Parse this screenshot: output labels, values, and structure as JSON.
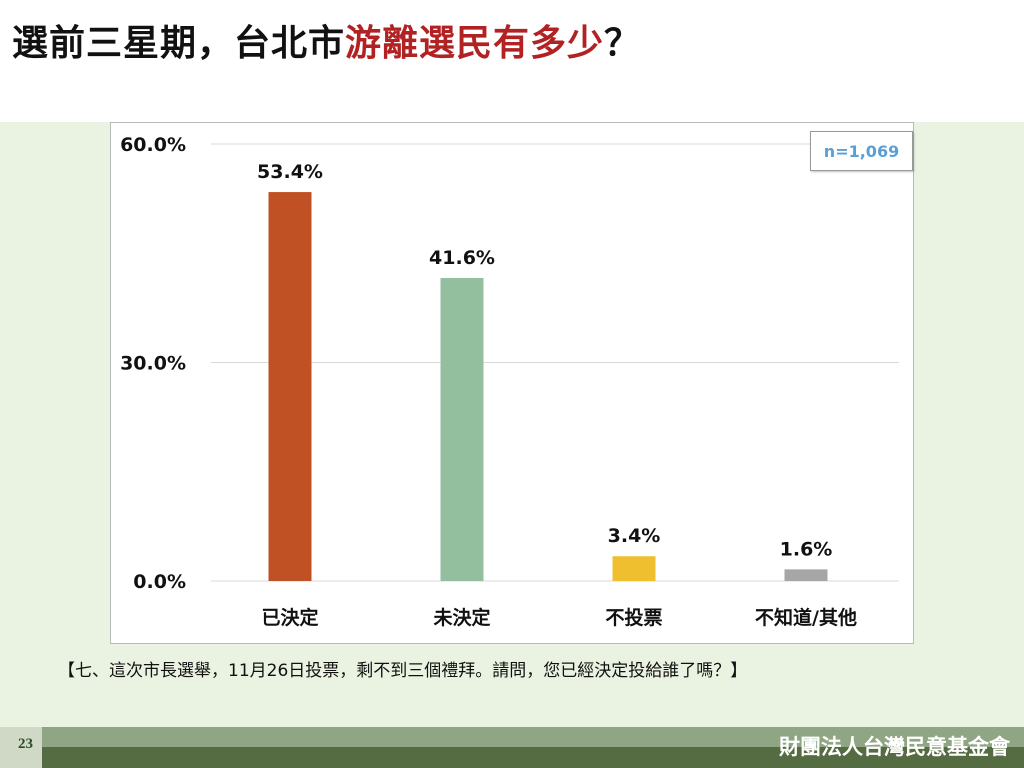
{
  "title": {
    "part1": "選前三星期，台北市",
    "part2": "游離選民有多少",
    "part3": "？"
  },
  "sample_label": "n=1,069",
  "question": "【七、這次市長選舉，11月26日投票，剩不到三個禮拜。請問，您已經決定投給誰了嗎？】",
  "page_number": "23",
  "organization": "財團法人台灣民意基金會",
  "chart_data": {
    "type": "bar",
    "categories": [
      "已決定",
      "未決定",
      "不投票",
      "不知道/其他"
    ],
    "values": [
      53.4,
      41.6,
      3.4,
      1.6
    ],
    "value_labels": [
      "53.4%",
      "41.6%",
      "3.4%",
      "1.6%"
    ],
    "colors": [
      "#c05125",
      "#93bf9f",
      "#efbf2f",
      "#a6a6a6"
    ],
    "ylim": [
      0,
      60
    ],
    "yticks": [
      0,
      30,
      60
    ],
    "ytick_labels": [
      "0.0%",
      "30.0%",
      "60.0%"
    ],
    "grid": true,
    "xlabel": "",
    "ylabel": ""
  }
}
